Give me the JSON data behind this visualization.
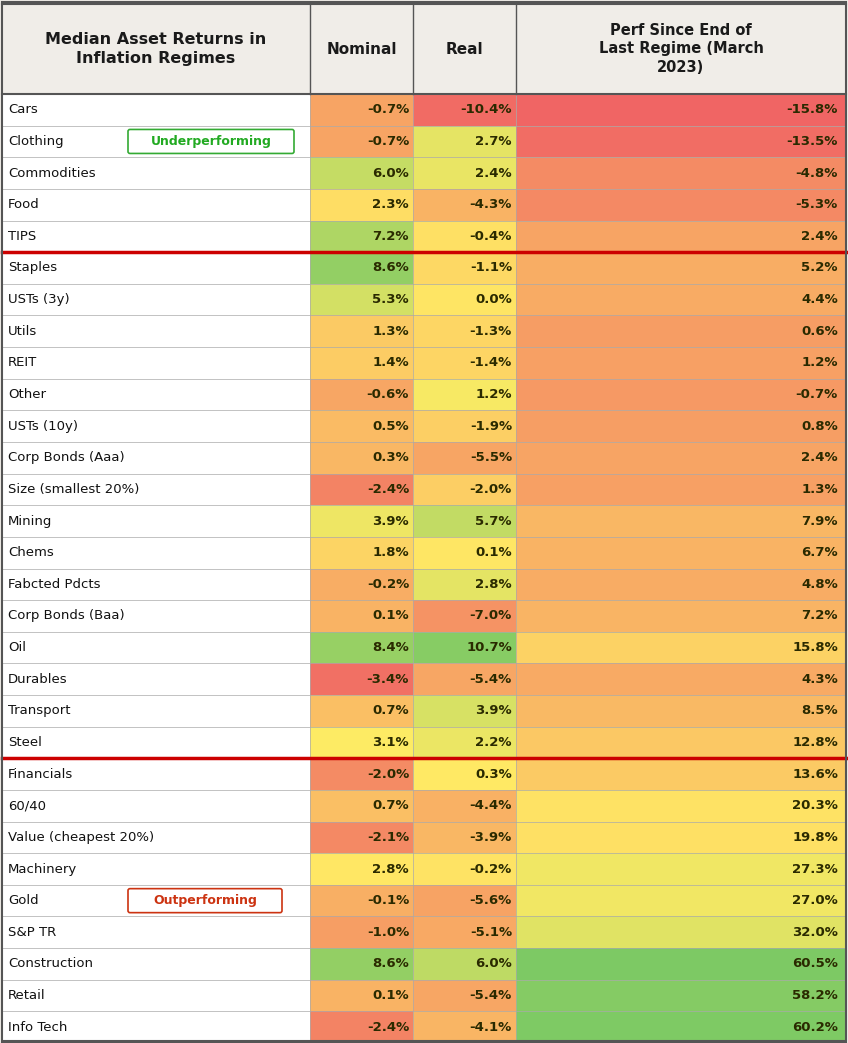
{
  "title_line1": "Median Asset Returns in",
  "title_line2": "Inflation Regimes",
  "col_nominal": "Nominal",
  "col_real": "Real",
  "col_perf": "Perf Since End of\nLast Regime (March\n2023)",
  "rows": [
    {
      "asset": "Cars",
      "nominal": -0.7,
      "real": -10.4,
      "perf": -15.8
    },
    {
      "asset": "Clothing",
      "nominal": -0.7,
      "real": 2.7,
      "perf": -13.5
    },
    {
      "asset": "Commodities",
      "nominal": 6.0,
      "real": 2.4,
      "perf": -4.8
    },
    {
      "asset": "Food",
      "nominal": 2.3,
      "real": -4.3,
      "perf": -5.3
    },
    {
      "asset": "TIPS",
      "nominal": 7.2,
      "real": -0.4,
      "perf": 2.4
    },
    {
      "asset": "Staples",
      "nominal": 8.6,
      "real": -1.1,
      "perf": 5.2
    },
    {
      "asset": "USTs (3y)",
      "nominal": 5.3,
      "real": 0.0,
      "perf": 4.4
    },
    {
      "asset": "Utils",
      "nominal": 1.3,
      "real": -1.3,
      "perf": 0.6
    },
    {
      "asset": "REIT",
      "nominal": 1.4,
      "real": -1.4,
      "perf": 1.2
    },
    {
      "asset": "Other",
      "nominal": -0.6,
      "real": 1.2,
      "perf": -0.7
    },
    {
      "asset": "USTs (10y)",
      "nominal": 0.5,
      "real": -1.9,
      "perf": 0.8
    },
    {
      "asset": "Corp Bonds (Aaa)",
      "nominal": 0.3,
      "real": -5.5,
      "perf": 2.4
    },
    {
      "asset": "Size (smallest 20%)",
      "nominal": -2.4,
      "real": -2.0,
      "perf": 1.3
    },
    {
      "asset": "Mining",
      "nominal": 3.9,
      "real": 5.7,
      "perf": 7.9
    },
    {
      "asset": "Chems",
      "nominal": 1.8,
      "real": 0.1,
      "perf": 6.7
    },
    {
      "asset": "Fabcted Pdcts",
      "nominal": -0.2,
      "real": 2.8,
      "perf": 4.8
    },
    {
      "asset": "Corp Bonds (Baa)",
      "nominal": 0.1,
      "real": -7.0,
      "perf": 7.2
    },
    {
      "asset": "Oil",
      "nominal": 8.4,
      "real": 10.7,
      "perf": 15.8
    },
    {
      "asset": "Durables",
      "nominal": -3.4,
      "real": -5.4,
      "perf": 4.3
    },
    {
      "asset": "Transport",
      "nominal": 0.7,
      "real": 3.9,
      "perf": 8.5
    },
    {
      "asset": "Steel",
      "nominal": 3.1,
      "real": 2.2,
      "perf": 12.8
    },
    {
      "asset": "Financials",
      "nominal": -2.0,
      "real": 0.3,
      "perf": 13.6
    },
    {
      "asset": "60/40",
      "nominal": 0.7,
      "real": -4.4,
      "perf": 20.3
    },
    {
      "asset": "Value (cheapest 20%)",
      "nominal": -2.1,
      "real": -3.9,
      "perf": 19.8
    },
    {
      "asset": "Machinery",
      "nominal": 2.8,
      "real": -0.2,
      "perf": 27.3
    },
    {
      "asset": "Gold",
      "nominal": -0.1,
      "real": -5.6,
      "perf": 27.0
    },
    {
      "asset": "S&P TR",
      "nominal": -1.0,
      "real": -5.1,
      "perf": 32.0
    },
    {
      "asset": "Construction",
      "nominal": 8.6,
      "real": 6.0,
      "perf": 60.5
    },
    {
      "asset": "Retail",
      "nominal": 0.1,
      "real": -5.4,
      "perf": 58.2
    },
    {
      "asset": "Info Tech",
      "nominal": -2.4,
      "real": -4.1,
      "perf": 60.2
    }
  ],
  "divider_after_rows": [
    4,
    20
  ],
  "underperforming_label_row": 1,
  "outperforming_label_row": 25,
  "background_color": "#f0ede8",
  "border_color": "#cc0000",
  "text_color": "#1a1a1a",
  "nominal_range": [
    -4,
    10
  ],
  "real_range": [
    -11,
    12
  ],
  "perf_range": [
    -16,
    62
  ],
  "fig_width": 8.48,
  "fig_height": 10.43,
  "dpi": 100
}
